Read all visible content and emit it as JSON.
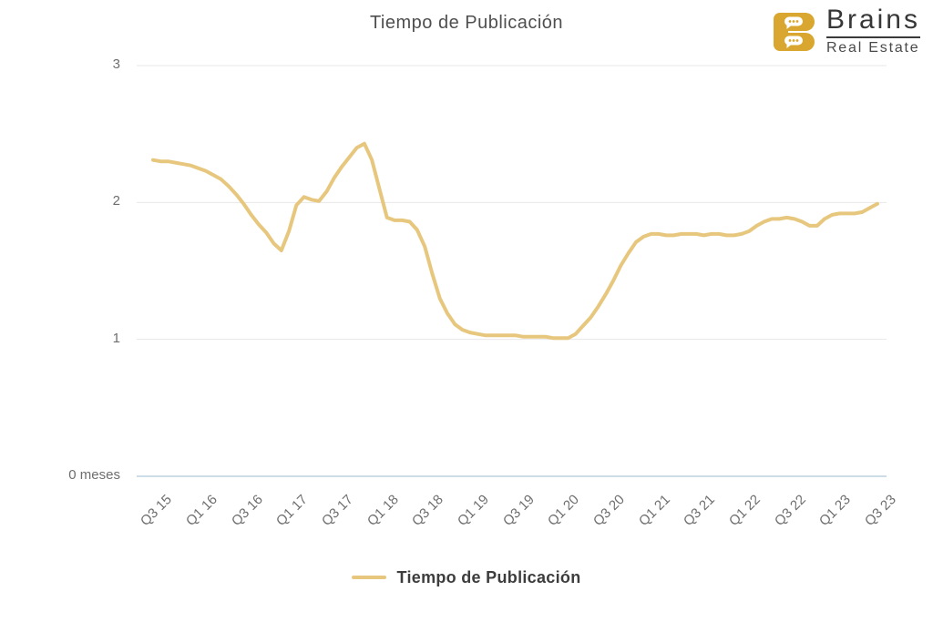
{
  "header": {
    "title": "Tiempo de Publicación",
    "logo": {
      "name": "Brains",
      "subtitle": "Real Estate"
    }
  },
  "legend": {
    "items": [
      {
        "label": "Tiempo de Publicación",
        "color": "#E7C77D"
      }
    ]
  },
  "colors": {
    "line": "#E7C77D",
    "grid": "#E7E7E7",
    "zero_axis": "#CCDDE8",
    "axis_text": "#6E6E6E",
    "title_text": "#4F4F4F",
    "legend_text": "#3D3D3D",
    "logo_gold": "#D9A72F",
    "logo_text": "#3A3A3A"
  },
  "chart_data": {
    "type": "line",
    "title": "Tiempo de Publicación",
    "unit": "meses",
    "x_interval": "monthly",
    "x_start": "Q3 2015",
    "x_end": "Q3 2023",
    "x_tick_labels": [
      "Q3 15",
      "Q1 16",
      "Q3 16",
      "Q1 17",
      "Q3 17",
      "Q1 18",
      "Q3 18",
      "Q1 19",
      "Q3 19",
      "Q1 20",
      "Q3 20",
      "Q1 21",
      "Q3 21",
      "Q1 22",
      "Q3 22",
      "Q1 23",
      "Q3 23"
    ],
    "months_per_tick": 6,
    "y_ticks": [
      {
        "value": 3,
        "label": "3"
      },
      {
        "value": 2,
        "label": "2"
      },
      {
        "value": 1,
        "label": "1"
      },
      {
        "value": 0,
        "label": "0 meses"
      }
    ],
    "ylim": [
      0,
      3
    ],
    "grid": true,
    "legend_position": "bottom",
    "series": [
      {
        "name": "Tiempo de Publicación",
        "color": "#E7C77D",
        "values": [
          2.31,
          2.3,
          2.3,
          2.29,
          2.28,
          2.27,
          2.25,
          2.23,
          2.2,
          2.17,
          2.12,
          2.06,
          1.99,
          1.91,
          1.84,
          1.78,
          1.7,
          1.65,
          1.79,
          1.98,
          2.04,
          2.02,
          2.01,
          2.08,
          2.18,
          2.26,
          2.33,
          2.4,
          2.43,
          2.31,
          2.1,
          1.89,
          1.87,
          1.87,
          1.86,
          1.8,
          1.68,
          1.48,
          1.3,
          1.19,
          1.11,
          1.07,
          1.05,
          1.04,
          1.03,
          1.03,
          1.03,
          1.03,
          1.03,
          1.02,
          1.02,
          1.02,
          1.02,
          1.01,
          1.01,
          1.01,
          1.04,
          1.1,
          1.16,
          1.24,
          1.33,
          1.43,
          1.54,
          1.63,
          1.71,
          1.75,
          1.77,
          1.77,
          1.76,
          1.76,
          1.77,
          1.77,
          1.77,
          1.76,
          1.77,
          1.77,
          1.76,
          1.76,
          1.77,
          1.79,
          1.83,
          1.86,
          1.88,
          1.88,
          1.89,
          1.88,
          1.86,
          1.83,
          1.83,
          1.88,
          1.91,
          1.92,
          1.92,
          1.92,
          1.93,
          1.96,
          1.99
        ]
      }
    ]
  }
}
